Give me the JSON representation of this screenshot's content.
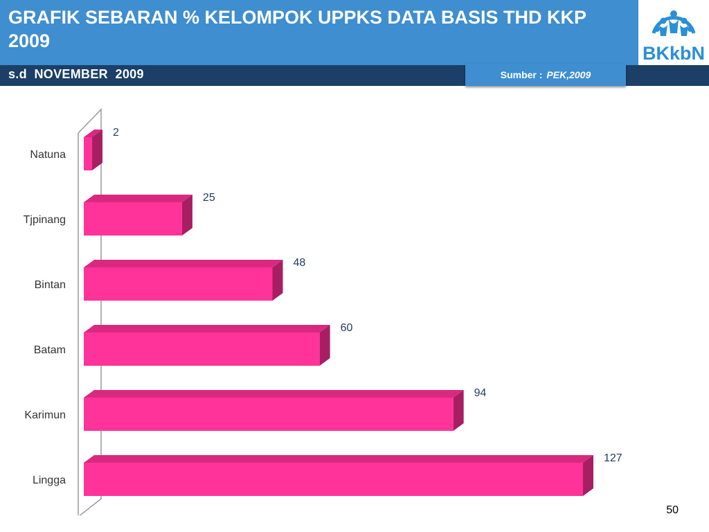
{
  "header": {
    "title": "GRAFIK SEBARAN % KELOMPOK UPPKS DATA BASIS THD KKP 2009",
    "subtitle": "s.d  NOVEMBER  2009",
    "source_label": "Sumber :",
    "source_value": "PEK,2009",
    "logo_text": "BKkbN"
  },
  "colors": {
    "header_bg": "#3e8ed0",
    "subbar_bg": "#1b3f66",
    "bar_front": "#ff3399",
    "bar_top": "#d9297f",
    "bar_side": "#a81e63"
  },
  "chart_data": {
    "type": "bar",
    "orientation": "horizontal",
    "categories": [
      "Natuna",
      "Tjpinang",
      "Bintan",
      "Batam",
      "Karimun",
      "Lingga"
    ],
    "values": [
      2,
      25,
      48,
      60,
      94,
      127
    ],
    "data_labels": [
      "2",
      "25",
      "48",
      "60",
      "94",
      "127"
    ],
    "title": "",
    "xlabel": "",
    "ylabel": "",
    "xlim": [
      0,
      127
    ],
    "grid": false,
    "legend": "none"
  },
  "page_number": "50"
}
